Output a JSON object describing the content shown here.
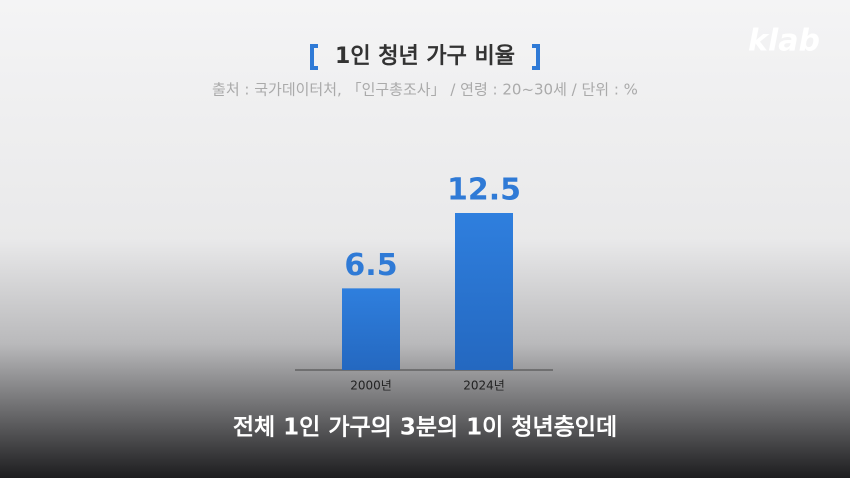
{
  "chart_data": {
    "type": "bar",
    "title": "1인 청년 가구 비율",
    "subtitle": "출처 : 국가데이터처, 「인구총조사」 / 연령 : 20~30세 / 단위 : %",
    "categories": [
      "2000년",
      "2024년"
    ],
    "values": [
      6.5,
      12.5
    ],
    "color": "#2f7ad6"
  },
  "caption": "전체 1인 가구의 3분의 1이 청년층인데",
  "logo": "klab"
}
